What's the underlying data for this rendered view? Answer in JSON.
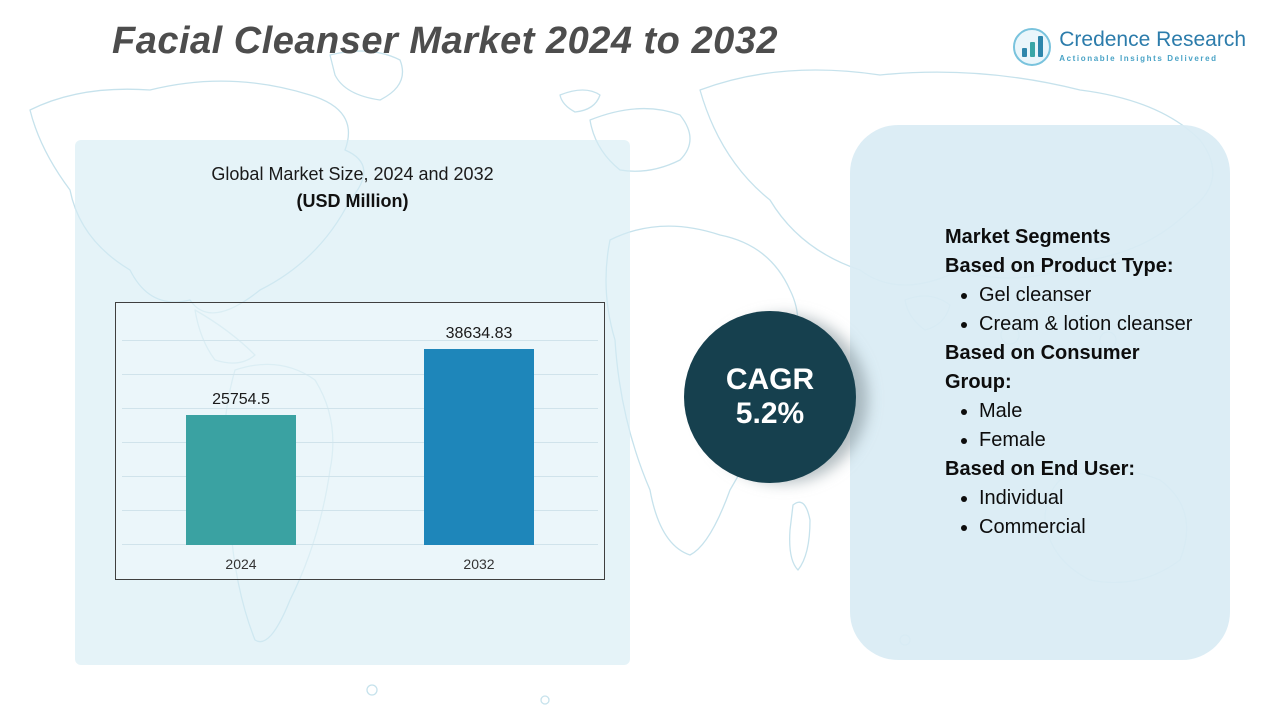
{
  "page": {
    "title": "Facial Cleanser Market 2024 to 2032"
  },
  "logo": {
    "name": "Credence Research",
    "tagline": "Actionable Insights Delivered"
  },
  "chart_panel": {
    "title": "Global Market Size, 2024 and 2032",
    "subtitle": "(USD Million)"
  },
  "chart_data": {
    "type": "bar",
    "title": "Global Market Size, 2024 and 2032",
    "subtitle": "(USD Million)",
    "categories": [
      "2024",
      "2032"
    ],
    "values": [
      25754.5,
      38634.83
    ],
    "labels": [
      "25754.5",
      "38634.83"
    ],
    "ylim": [
      0,
      45000
    ],
    "grid": true,
    "legend": "none",
    "bar_colors": [
      "#3aa2a2",
      "#1e86ba"
    ]
  },
  "cagr": {
    "label": "CAGR",
    "value": "5.2%"
  },
  "segments": {
    "title": "Market Segments",
    "sections": [
      {
        "heading": "Based on Product Type:",
        "items": [
          "Gel cleanser",
          "Cream & lotion cleanser"
        ]
      },
      {
        "heading": "Based on Consumer Group:",
        "items": [
          "Male",
          "Female"
        ]
      },
      {
        "heading": "Based on End User:",
        "items": [
          "Individual",
          "Commercial"
        ]
      }
    ]
  },
  "colors": {
    "accent_dark": "#16404e",
    "panel_blue": "#d9ecf4",
    "map_line": "#c6e2ec",
    "bar_2024": "#3aa2a2",
    "bar_2032": "#1e86ba"
  }
}
